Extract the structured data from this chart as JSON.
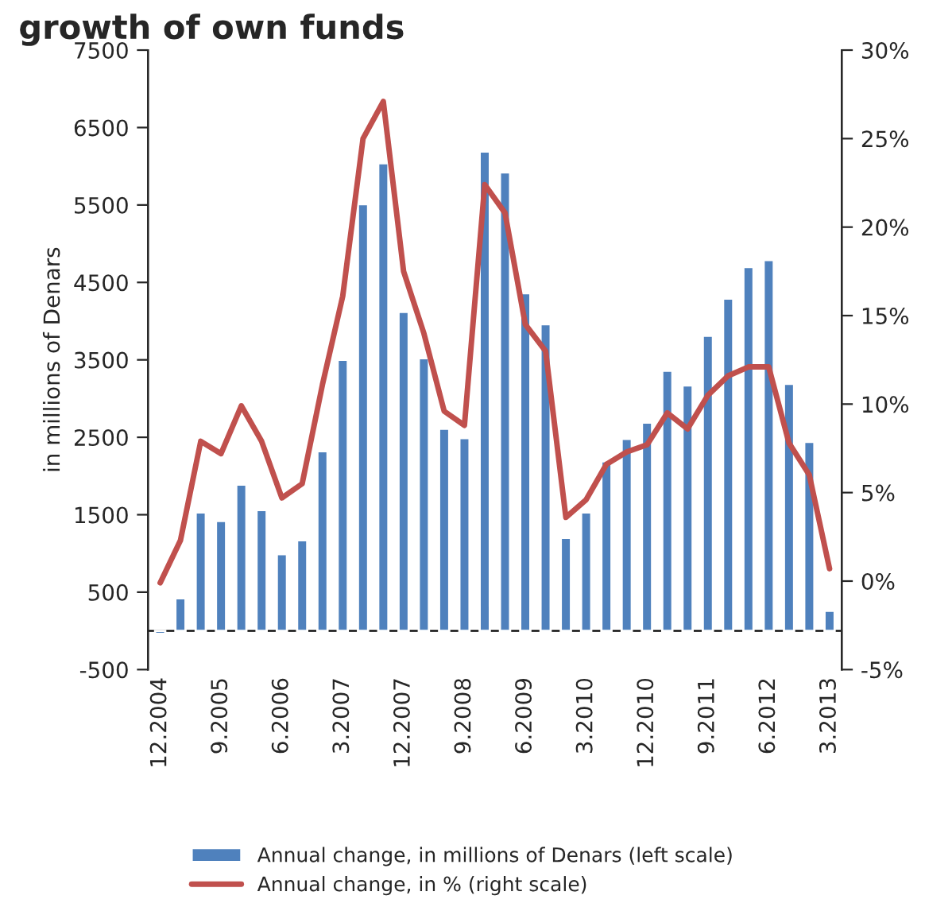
{
  "chart_data": {
    "type": "bar",
    "title": "growth of own funds",
    "ylabel": "in millions of Denars",
    "categories": [
      "12.2004",
      null,
      null,
      "9.2005",
      null,
      null,
      "6.2006",
      null,
      null,
      "3.2007",
      null,
      null,
      "12.2007",
      null,
      null,
      "9.2008",
      null,
      null,
      "6.2009",
      null,
      null,
      "3.2010",
      null,
      null,
      "12.2010",
      null,
      null,
      "9.2011",
      null,
      null,
      "6.2012",
      null,
      null,
      "3.2013"
    ],
    "series": [
      {
        "name": "Annual change, in millions of Denars (left scale)",
        "color": "#4f81bd",
        "values": [
          -40,
          420,
          1530,
          1420,
          1890,
          1560,
          990,
          1170,
          2320,
          3500,
          5510,
          6040,
          4120,
          3520,
          2610,
          2490,
          6190,
          5920,
          4360,
          3960,
          1200,
          1530,
          2190,
          2480,
          2690,
          3360,
          3170,
          3810,
          4290,
          4700,
          4790,
          3190,
          2440,
          260
        ]
      },
      {
        "name": "Annual change, in % (right scale)",
        "type": "line",
        "axis": "y2",
        "color": "#c0504d",
        "values": [
          -0.1,
          2.3,
          7.9,
          7.2,
          9.9,
          7.9,
          4.7,
          5.5,
          11.1,
          16.1,
          25.0,
          27.1,
          17.5,
          14.0,
          9.6,
          8.8,
          22.4,
          20.8,
          14.5,
          13.0,
          3.6,
          4.6,
          6.6,
          7.3,
          7.7,
          9.5,
          8.6,
          10.5,
          11.6,
          12.1,
          12.1,
          7.8,
          6.0,
          0.7
        ]
      }
    ],
    "ylim": [
      -500,
      7500
    ],
    "yticks": [
      -500,
      500,
      1500,
      2500,
      3500,
      4500,
      5500,
      6500,
      7500
    ],
    "y2lim": [
      -5,
      30
    ],
    "y2ticks": [
      {
        "value": -5,
        "label": "-5%"
      },
      {
        "value": 0,
        "label": "0%"
      },
      {
        "value": 5,
        "label": "5%"
      },
      {
        "value": 10,
        "label": "10%"
      },
      {
        "value": 15,
        "label": "15%"
      },
      {
        "value": 20,
        "label": "20%"
      },
      {
        "value": 25,
        "label": "25%"
      },
      {
        "value": 30,
        "label": "30%"
      }
    ],
    "grid": false,
    "legend": "bottom",
    "marker": "none",
    "line_style": "solid"
  }
}
